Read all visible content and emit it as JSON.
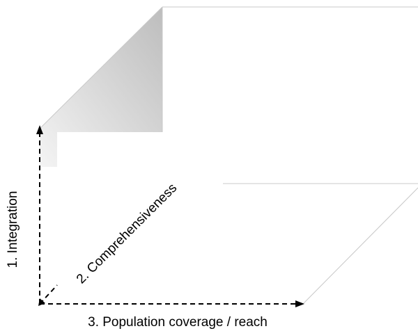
{
  "axes": {
    "integration": "1. Integration",
    "comprehensiveness": "2. Comprehensiveness",
    "population_coverage": "3. Population coverage / reach"
  },
  "colors": {
    "axis_line": "#000000",
    "cube_edge": "#c8c8c8",
    "shade_dark": "#bdbdbd",
    "shade_light": "#f4f4f4"
  }
}
